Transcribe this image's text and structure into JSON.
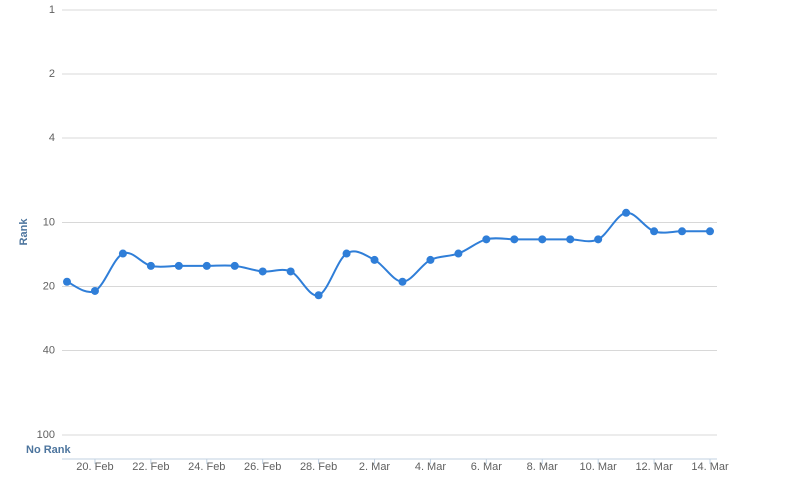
{
  "chart_data": {
    "type": "line",
    "y_label": "Rank",
    "no_rank_label": "No Rank",
    "categories": [
      null,
      "20. Feb",
      null,
      "22. Feb",
      null,
      "24. Feb",
      null,
      "26. Feb",
      null,
      "28. Feb",
      null,
      "2. Mar",
      null,
      "4. Mar",
      null,
      "6. Mar",
      null,
      "8. Mar",
      null,
      "10. Mar",
      null,
      "12. Mar",
      null,
      "14. Mar"
    ],
    "values": [
      19,
      21,
      14,
      16,
      16,
      16,
      16,
      17,
      17,
      22,
      14,
      15,
      19,
      15,
      14,
      12,
      12,
      12,
      12,
      12,
      9,
      11,
      11,
      11
    ],
    "color": "#2f7ed8",
    "yscale": "log",
    "yreversed": true,
    "ylim": [
      1,
      100
    ],
    "yticks": [
      1,
      2,
      4,
      10,
      20,
      40,
      100
    ],
    "grid": true
  }
}
